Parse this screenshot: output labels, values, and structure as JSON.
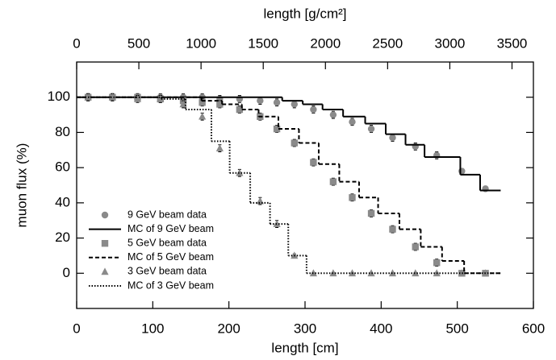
{
  "chart_data": {
    "type": "line",
    "xlabel": "length [cm]",
    "ylabel": "muon flux (%)",
    "x2label": "length [g/cm²]",
    "xlim": [
      0,
      600
    ],
    "xticks": [
      0,
      100,
      200,
      300,
      400,
      500,
      600
    ],
    "x2lim": [
      0,
      3672
    ],
    "x2ticks": [
      0,
      500,
      1000,
      1500,
      2000,
      2500,
      3000,
      3500
    ],
    "ylim": [
      -20,
      120
    ],
    "yticks": [
      0,
      20,
      40,
      60,
      80,
      100
    ],
    "legend": "lower left",
    "series": [
      {
        "name": "9 GeV beam data",
        "kind": "points",
        "marker": "circle",
        "color": "#8a8a8a",
        "x": [
          15,
          47,
          80,
          110,
          140,
          165,
          188,
          214,
          241,
          263,
          286,
          311,
          337,
          362,
          387,
          415,
          445,
          473,
          506,
          537
        ],
        "values": [
          100,
          100,
          100,
          100,
          100,
          100,
          99,
          99,
          98,
          97,
          96,
          93,
          90,
          86,
          82,
          77,
          72,
          67,
          58,
          48
        ],
        "errors": [
          2,
          2,
          2,
          2,
          2,
          2,
          2,
          2,
          2,
          2,
          2,
          2,
          2,
          2,
          2,
          2,
          2,
          2,
          1.5,
          1.5
        ]
      },
      {
        "name": "MC of 9 GeV beam",
        "kind": "step",
        "dash": "solid",
        "color": "#000000",
        "bins": [
          0,
          270,
          297,
          323,
          350,
          379,
          406,
          432,
          457,
          504,
          530,
          557
        ],
        "values": [
          100,
          98,
          96,
          93,
          89,
          85,
          79,
          73,
          66,
          56,
          47
        ]
      },
      {
        "name": "5 GeV beam data",
        "kind": "points",
        "marker": "square",
        "color": "#8a8a8a",
        "x": [
          15,
          47,
          80,
          110,
          140,
          165,
          188,
          214,
          241,
          263,
          286,
          311,
          337,
          362,
          387,
          415,
          445,
          473,
          506,
          537
        ],
        "values": [
          100,
          100,
          100,
          99,
          98,
          97,
          96,
          93,
          89,
          82,
          74,
          63,
          52,
          43,
          34,
          25,
          15,
          6,
          0,
          0
        ],
        "errors": [
          2,
          2,
          2,
          2,
          2,
          2,
          2,
          2,
          2,
          2,
          2,
          2,
          2,
          2,
          2,
          2,
          2,
          2,
          1,
          1
        ]
      },
      {
        "name": "MC of 5 GeV beam",
        "kind": "step",
        "dash": "dashed",
        "color": "#000000",
        "bins": [
          0,
          164,
          191,
          217,
          239,
          265,
          292,
          318,
          345,
          371,
          396,
          424,
          452,
          480,
          509,
          557
        ],
        "values": [
          100,
          98,
          96,
          93,
          89,
          82,
          74,
          62,
          52,
          43,
          34,
          25,
          15,
          7,
          0
        ]
      },
      {
        "name": "3 GeV beam data",
        "kind": "points",
        "marker": "triangle",
        "color": "#8a8a8a",
        "x": [
          15,
          47,
          80,
          110,
          140,
          165,
          188,
          214,
          241,
          263,
          286,
          311,
          337,
          362,
          387,
          415,
          445,
          473,
          506,
          537
        ],
        "values": [
          100,
          100,
          99,
          99,
          96,
          89,
          71,
          57,
          41,
          28,
          10,
          0,
          0,
          0,
          0,
          0,
          0,
          0,
          0,
          0
        ],
        "errors": [
          2,
          2,
          2,
          2,
          2,
          2,
          2,
          2,
          2,
          2,
          1,
          0.5,
          0.5,
          0.5,
          0.5,
          0.5,
          0.5,
          0.5,
          0.5,
          0.5
        ]
      },
      {
        "name": "MC of 3 GeV beam",
        "kind": "step",
        "dash": "dotted",
        "color": "#000000",
        "bins": [
          0,
          111,
          143,
          177,
          201,
          228,
          254,
          278,
          302,
          557
        ],
        "values": [
          100,
          99,
          93,
          75,
          57,
          40,
          28,
          10,
          0
        ]
      }
    ]
  }
}
